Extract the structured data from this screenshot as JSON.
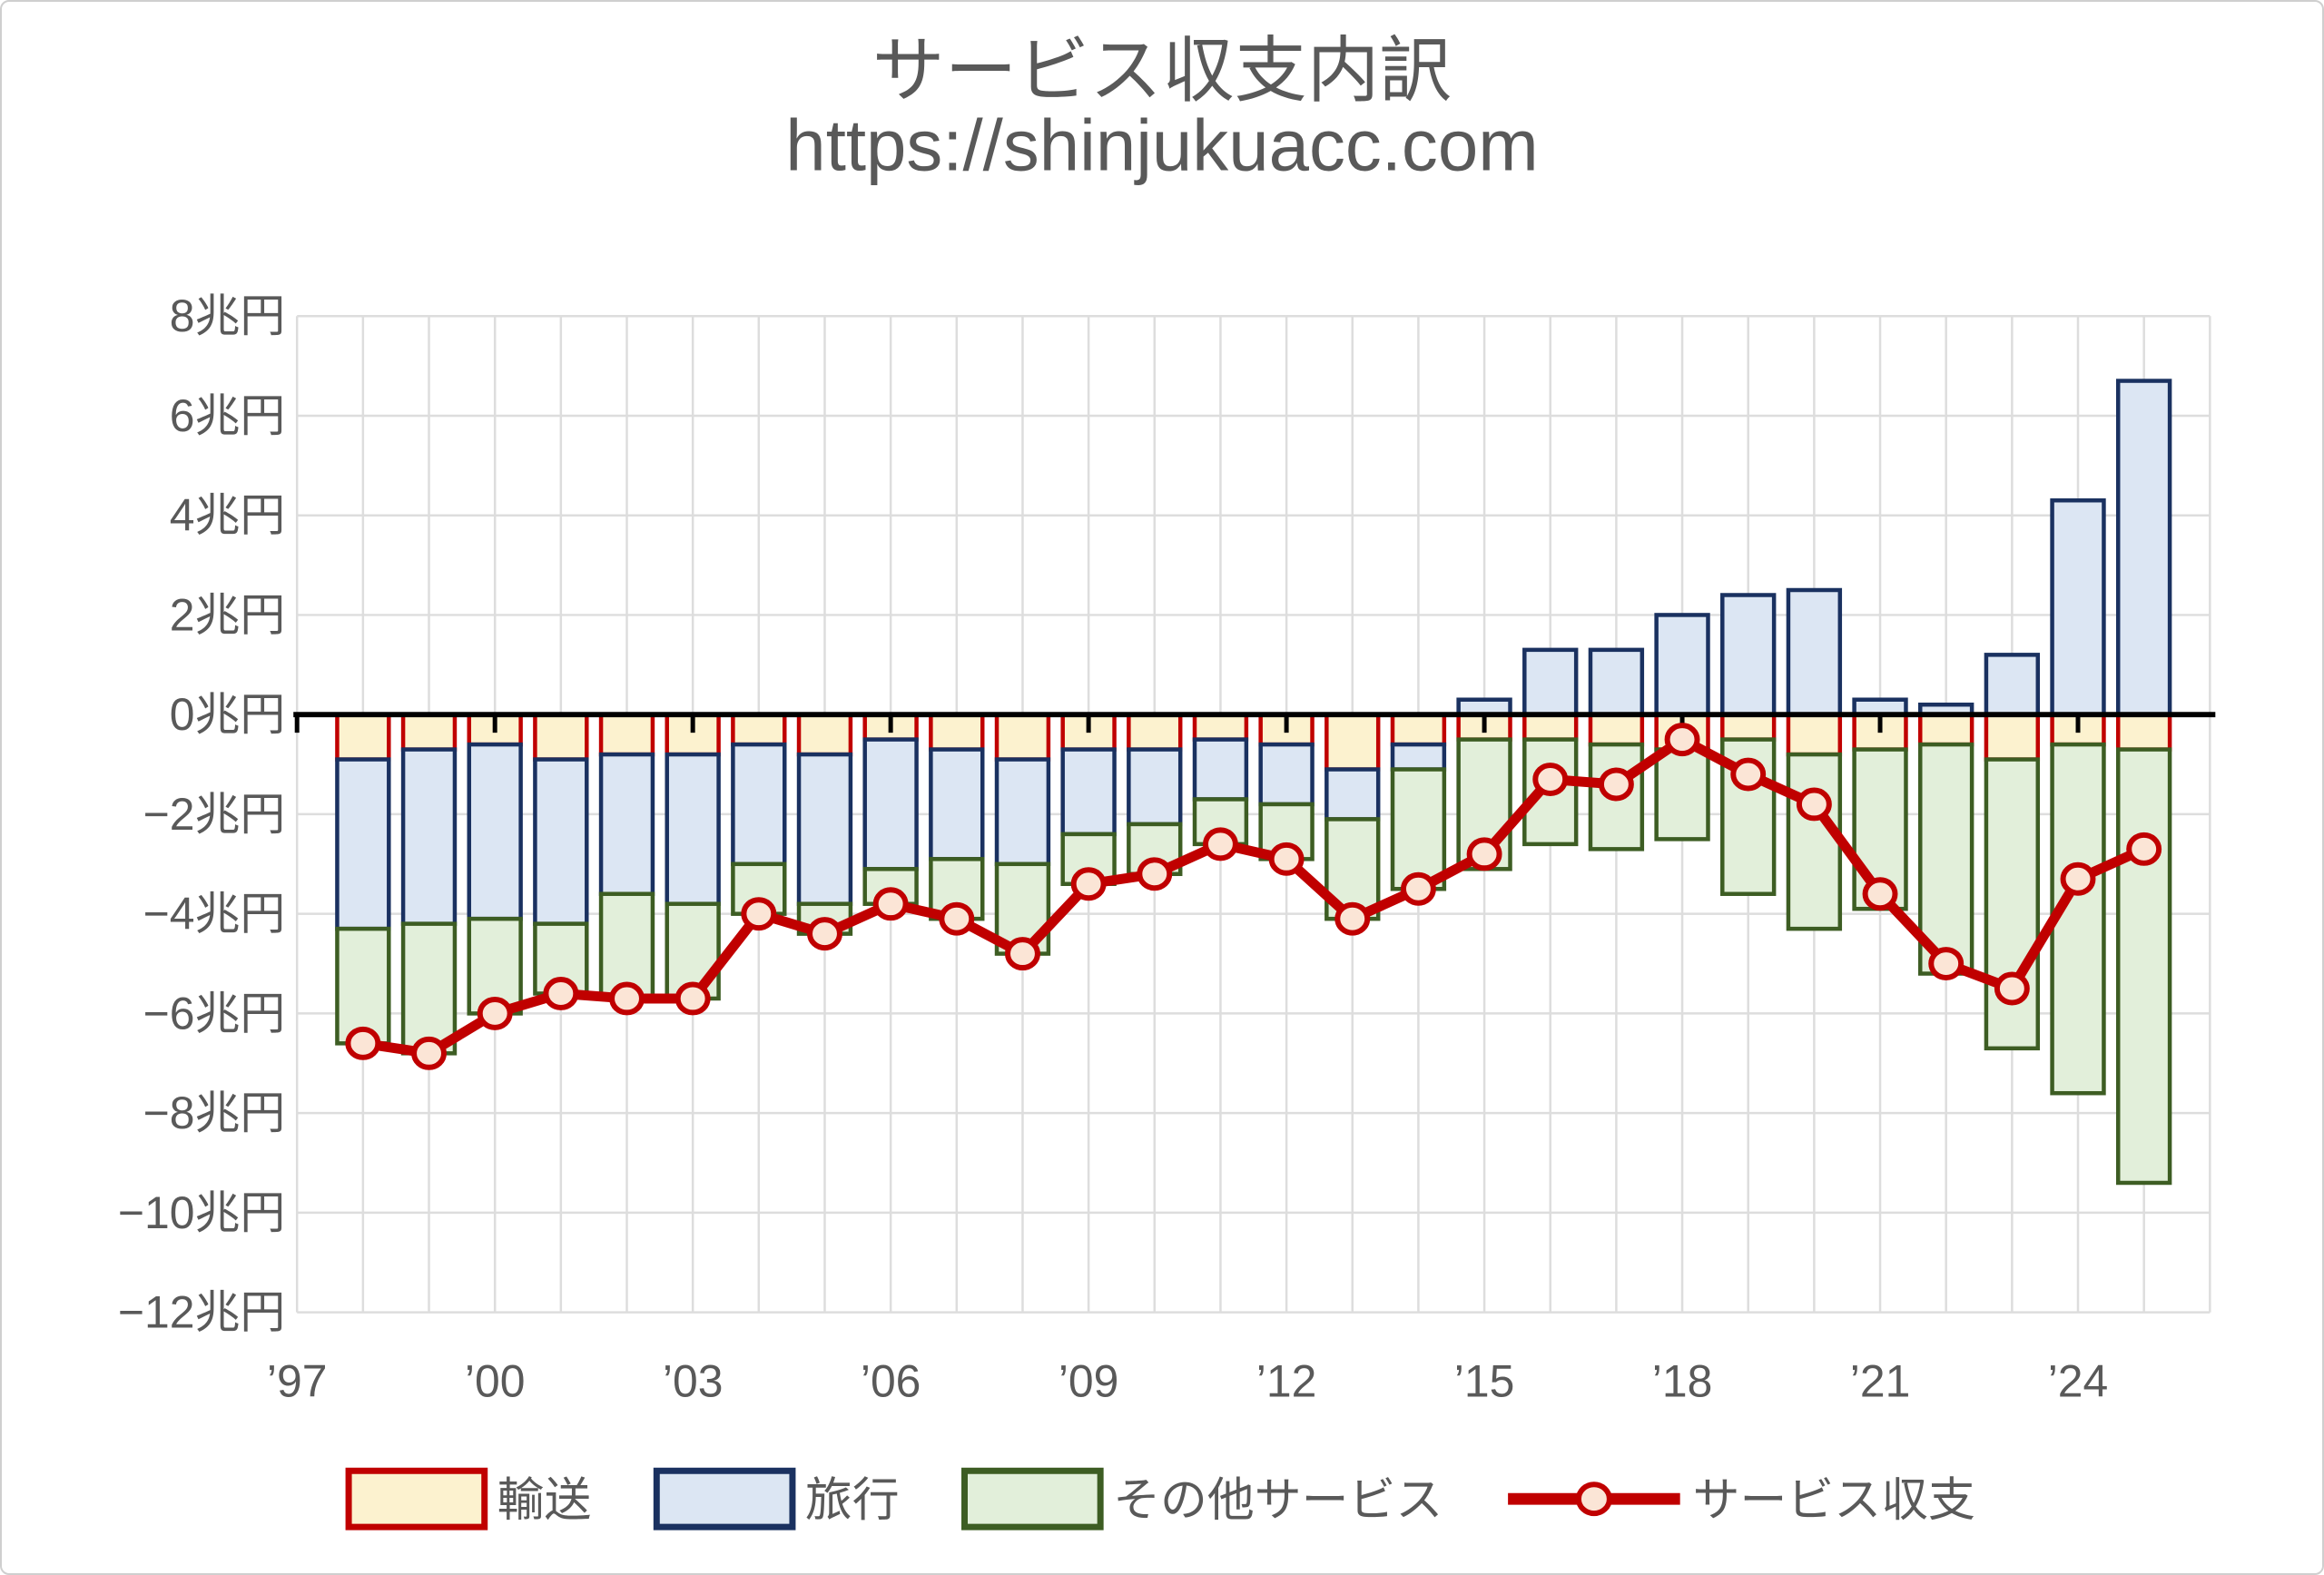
{
  "chart_data": {
    "type": "bar",
    "combo": "stacked-bar-with-line",
    "title": "サービス収支内訳",
    "subtitle": "https://shinjukuacc.com",
    "unit": "兆円",
    "categories": [
      1998,
      1999,
      2000,
      2001,
      2002,
      2003,
      2004,
      2005,
      2006,
      2007,
      2008,
      2009,
      2010,
      2011,
      2012,
      2013,
      2014,
      2015,
      2016,
      2017,
      2018,
      2019,
      2020,
      2021,
      2022,
      2023,
      2024,
      2025
    ],
    "x_axis": {
      "domain_years": [
        1997,
        2026
      ],
      "tick_years": [
        1997,
        2000,
        2003,
        2006,
        2009,
        2012,
        2015,
        2018,
        2021,
        2024
      ],
      "tick_labels": [
        "’97",
        "’00",
        "’03",
        "’06",
        "’09",
        "’12",
        "’15",
        "’18",
        "’21",
        "’24"
      ]
    },
    "y_axis": {
      "min": -12,
      "max": 8,
      "step": 2,
      "tick_labels": [
        "8兆円",
        "6兆円",
        "4兆円",
        "2兆円",
        "0兆円",
        "−2兆円",
        "−4兆円",
        "−6兆円",
        "−8兆円",
        "−10兆円",
        "−12兆円"
      ]
    },
    "grid": true,
    "legend_position": "bottom",
    "series": [
      {
        "name": "輸送",
        "type": "bar",
        "fill": "#FCF2CF",
        "border": "#C00000",
        "values": [
          -0.9,
          -0.7,
          -0.6,
          -0.9,
          -0.8,
          -0.8,
          -0.6,
          -0.8,
          -0.5,
          -0.7,
          -0.9,
          -0.7,
          -0.7,
          -0.5,
          -0.6,
          -1.1,
          -0.6,
          -0.5,
          -0.5,
          -0.6,
          -0.7,
          -0.5,
          -0.8,
          -0.7,
          -0.6,
          -0.9,
          -0.6,
          -0.7
        ]
      },
      {
        "name": "旅行",
        "type": "bar",
        "fill": "#DCE6F3",
        "border": "#1A3160",
        "values": [
          -3.4,
          -3.5,
          -3.5,
          -3.3,
          -2.8,
          -3.0,
          -2.4,
          -3.0,
          -2.6,
          -2.2,
          -2.1,
          -1.7,
          -1.5,
          -1.2,
          -1.2,
          -1.0,
          -0.5,
          0.3,
          1.3,
          1.3,
          2.0,
          2.4,
          2.5,
          0.3,
          0.2,
          1.2,
          4.3,
          6.7
        ]
      },
      {
        "name": "その他サービス",
        "type": "bar",
        "fill": "#E2EFDA",
        "border": "#3D5D23",
        "values": [
          -2.3,
          -2.6,
          -1.9,
          -1.4,
          -2.1,
          -1.9,
          -1.0,
          -0.6,
          -0.7,
          -1.2,
          -1.8,
          -1.0,
          -1.0,
          -0.9,
          -1.1,
          -2.0,
          -2.4,
          -2.6,
          -2.1,
          -2.1,
          -1.8,
          -3.1,
          -3.5,
          -3.2,
          -4.6,
          -5.8,
          -7.0,
          -8.7
        ]
      },
      {
        "name": "サービス収支",
        "type": "line",
        "color": "#C00000",
        "marker": "circle",
        "marker_fill": "#FBE5D6",
        "values": [
          -6.6,
          -6.8,
          -6.0,
          -5.6,
          -5.7,
          -5.7,
          -4.0,
          -4.4,
          -3.8,
          -4.1,
          -4.8,
          -3.4,
          -3.2,
          -2.6,
          -2.9,
          -4.1,
          -3.5,
          -2.8,
          -1.3,
          -1.4,
          -0.5,
          -1.2,
          -1.8,
          -3.6,
          -5.0,
          -5.5,
          -3.3,
          -2.7
        ]
      }
    ]
  },
  "colors": {
    "text": "#595959",
    "grid": "#DDDDDD",
    "zero_line": "#000000",
    "background": "#FFFFFF"
  }
}
